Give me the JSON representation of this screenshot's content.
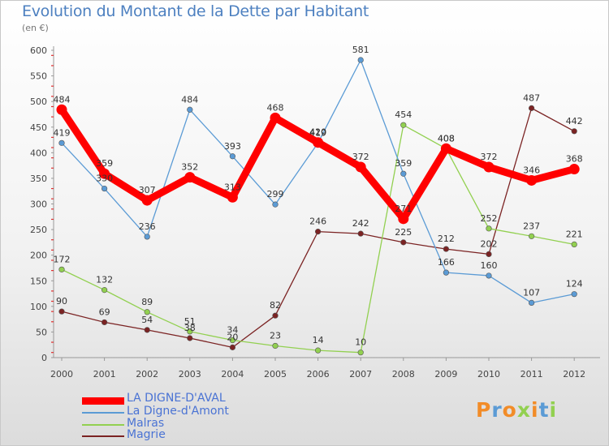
{
  "chart_data": {
    "type": "line",
    "title": "Evolution du Montant de la Dette par Habitant",
    "unit": "(en €)",
    "xlabel": "",
    "ylabel": "",
    "categories": [
      "2000",
      "2001",
      "2002",
      "2003",
      "2004",
      "2005",
      "2006",
      "2007",
      "2008",
      "2009",
      "2010",
      "2011",
      "2012"
    ],
    "ylim": [
      0,
      600
    ],
    "yticks": [
      0,
      50,
      100,
      150,
      200,
      250,
      300,
      350,
      400,
      450,
      500,
      550,
      600
    ],
    "grid": false,
    "legend_position": "bottom-left",
    "series": [
      {
        "name": "LA DIGNE-D'AVAL",
        "color": "#ff0000",
        "values": [
          484,
          359,
          307,
          352,
          313,
          468,
          420,
          372,
          271,
          408,
          372,
          346,
          368
        ]
      },
      {
        "name": "La Digne-d'Amont",
        "color": "#5b9bd5",
        "values": [
          419,
          330,
          236,
          484,
          393,
          299,
          419,
          581,
          359,
          166,
          160,
          107,
          124
        ]
      },
      {
        "name": "Malras",
        "color": "#92d050",
        "values": [
          172,
          132,
          89,
          51,
          34,
          23,
          14,
          10,
          454,
          408,
          252,
          237,
          221
        ]
      },
      {
        "name": "Magrie",
        "color": "#7b2323",
        "values": [
          90,
          69,
          54,
          38,
          20,
          82,
          246,
          242,
          225,
          212,
          202,
          487,
          442
        ]
      }
    ]
  },
  "logo": {
    "text": "Proxiti"
  }
}
